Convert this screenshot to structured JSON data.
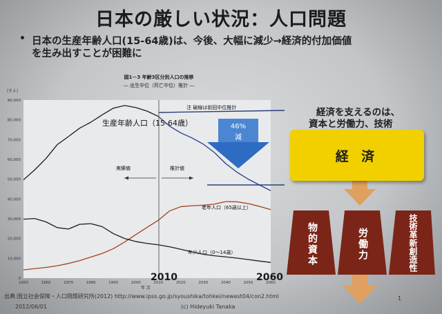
{
  "slide": {
    "title": "日本の厳しい状況：人口問題",
    "bullet_char": "•",
    "text_line1": "日本の生産年齢人口(15-64歳)は、今後、大幅に減少→経済的付加価値",
    "text_line2": "を生み出すことが困難に",
    "right_heading1": "経済を支えるのは、",
    "right_heading2": "資本と労働力、技術",
    "economy_label": "経 済",
    "pillar1": "物的資本",
    "pillar2": "労働力",
    "pillar3": "技術革新創造性",
    "decrease_label_pct": "46%",
    "decrease_label_word": "減",
    "year_2010": "2010",
    "year_2060": "2060",
    "source": "出典:国立社会保障・人口問題研究所(2012)  http://www.ipss.go.jp/syoushika/tohkei/newest04/con2.html",
    "date": "2012/06/01",
    "author": "(c) Hideyuki Tanaka",
    "page": "1"
  },
  "chart_data": {
    "type": "line",
    "title": "図1－3  年齢3区分別人口の推移",
    "subtitle": "― 出生中位（死亡中位）推計 ―",
    "yunit": "（千人）",
    "xlabel": "年 次",
    "xlim": [
      1950,
      2060
    ],
    "ylim": [
      0,
      90000
    ],
    "yticks": [
      "0",
      "10,000",
      "20,000",
      "30,000",
      "40,000",
      "50,000",
      "60,000",
      "70,000",
      "80,000",
      "90,000"
    ],
    "xticks": [
      "1950",
      "1960",
      "1970",
      "1980",
      "1990",
      "2000",
      "2010",
      "2020",
      "2030",
      "2040",
      "2050",
      "2060"
    ],
    "annotations": {
      "actual": "実績値",
      "projected": "推計値",
      "note": "注  破線は前回中位推計",
      "working_age": "生産年齢人口（15-64歳）",
      "elderly": "老年人口（65歳以上）",
      "young": "年少人口（0～14歳）"
    },
    "series": [
      {
        "name": "生産年齢人口（15-64歳）",
        "x": [
          1950,
          1955,
          1960,
          1965,
          1970,
          1975,
          1980,
          1985,
          1990,
          1995,
          2000,
          2005,
          2010,
          2015,
          2020,
          2025,
          2030,
          2035,
          2040,
          2045,
          2050,
          2055,
          2060
        ],
        "y": [
          49658,
          54730,
          60469,
          67444,
          71566,
          75807,
          78835,
          82506,
          85904,
          87260,
          86220,
          84422,
          81735,
          76818,
          73408,
          70845,
          67730,
          63430,
          57866,
          53531,
          50013,
          47063,
          44183
        ]
      },
      {
        "name": "老年人口（65歳以上）",
        "x": [
          1950,
          1955,
          1960,
          1965,
          1970,
          1975,
          1980,
          1985,
          1990,
          1995,
          2000,
          2005,
          2010,
          2015,
          2020,
          2025,
          2030,
          2035,
          2040,
          2045,
          2050,
          2055,
          2060
        ],
        "y": [
          4155,
          4786,
          5398,
          6236,
          7393,
          8869,
          10647,
          12468,
          14895,
          18261,
          22005,
          25672,
          29246,
          33952,
          36124,
          36573,
          36849,
          37407,
          38678,
          38564,
          37676,
          36257,
          34642
        ]
      },
      {
        "name": "年少人口（0～14歳）",
        "x": [
          1950,
          1955,
          1960,
          1965,
          1970,
          1975,
          1980,
          1985,
          1990,
          1995,
          2000,
          2005,
          2010,
          2015,
          2020,
          2025,
          2030,
          2035,
          2040,
          2045,
          2050,
          2055,
          2060
        ],
        "y": [
          29786,
          30123,
          28434,
          25529,
          24823,
          27221,
          27507,
          26033,
          22486,
          20014,
          18472,
          17521,
          16839,
          15827,
          14568,
          13240,
          12039,
          11287,
          10732,
          10116,
          9387,
          8614,
          7912
        ]
      }
    ]
  }
}
